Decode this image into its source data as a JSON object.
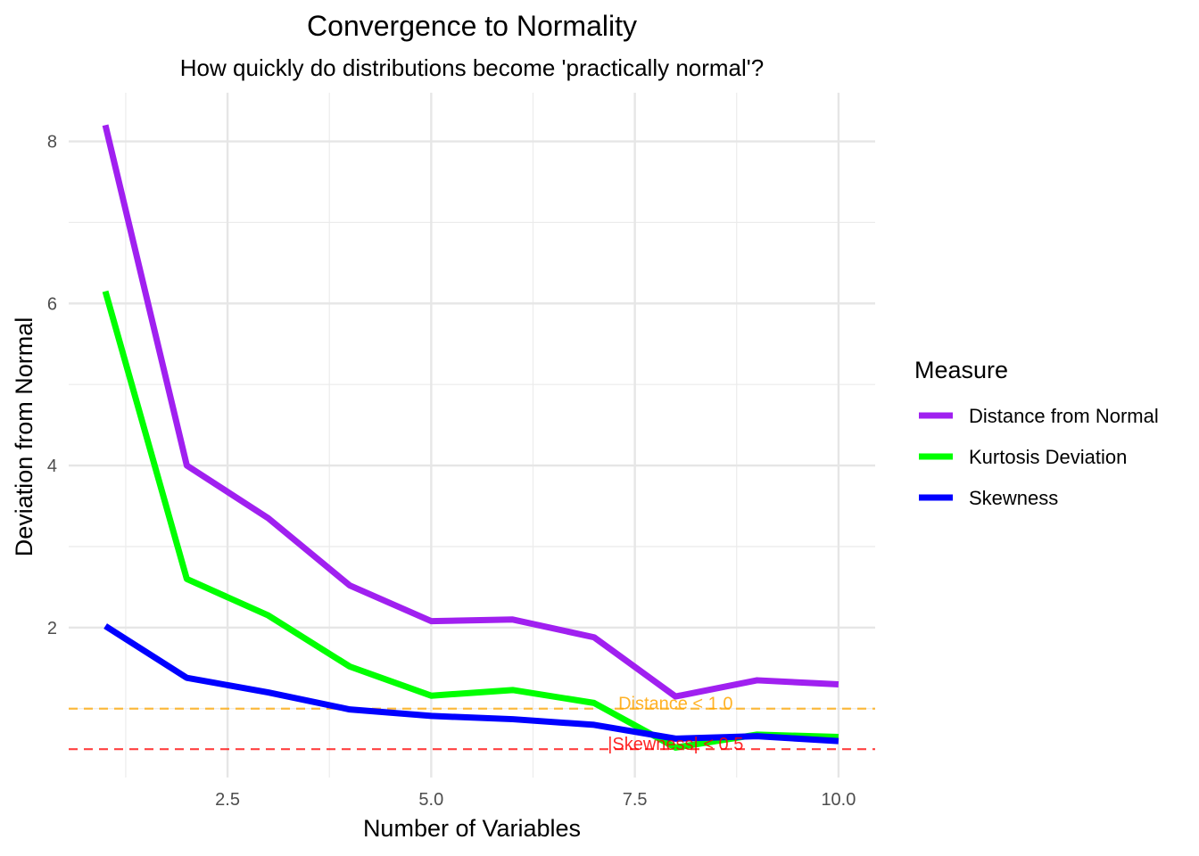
{
  "chart_data": {
    "type": "line",
    "title": "Convergence to Normality",
    "subtitle": "How quickly do distributions become 'practically normal'?",
    "xlabel": "Number of Variables",
    "ylabel": "Deviation from Normal",
    "xlim": [
      0.55,
      10.45
    ],
    "ylim": [
      0.15,
      8.6
    ],
    "x_ticks": [
      2.5,
      5.0,
      7.5,
      10.0
    ],
    "x_tick_labels": [
      "2.5",
      "5.0",
      "7.5",
      "10.0"
    ],
    "y_ticks": [
      2,
      4,
      6,
      8
    ],
    "y_tick_labels": [
      "2",
      "4",
      "6",
      "8"
    ],
    "grid": true,
    "x": [
      1,
      2,
      3,
      4,
      5,
      6,
      7,
      8,
      9,
      10
    ],
    "series": [
      {
        "name": "Distance from Normal",
        "color": "#a020f0",
        "values": [
          8.2,
          4.0,
          3.35,
          2.52,
          2.08,
          2.1,
          1.88,
          1.15,
          1.35,
          1.3
        ]
      },
      {
        "name": "Kurtosis Deviation",
        "color": "#00ff00",
        "values": [
          6.15,
          2.6,
          2.15,
          1.52,
          1.16,
          1.23,
          1.07,
          0.52,
          0.68,
          0.65
        ]
      },
      {
        "name": "Skewness",
        "color": "#0000ff",
        "values": [
          2.02,
          1.38,
          1.2,
          0.99,
          0.91,
          0.87,
          0.8,
          0.63,
          0.66,
          0.6
        ]
      }
    ],
    "reference_lines": [
      {
        "y": 1.0,
        "color": "#ffa500",
        "label": "Distance < 1.0"
      },
      {
        "y": 0.5,
        "color": "#ff0000",
        "label": "|Skewness| < 0.5"
      }
    ],
    "legend": {
      "title": "Measure",
      "position": "right",
      "entries": [
        "Distance from Normal",
        "Kurtosis Deviation",
        "Skewness"
      ]
    }
  }
}
